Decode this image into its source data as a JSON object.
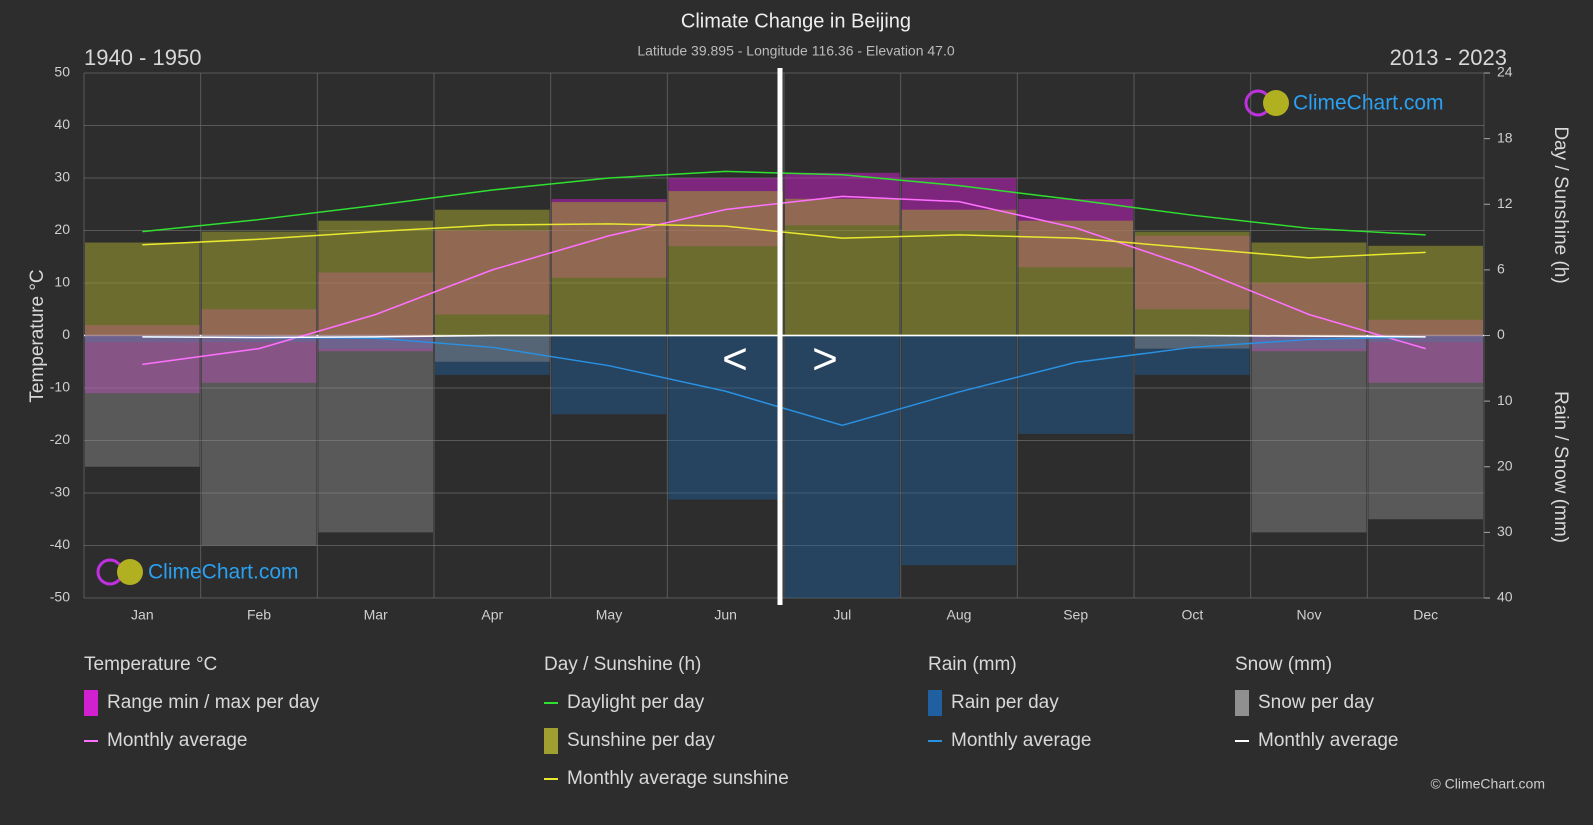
{
  "chart_data": {
    "type": "climate",
    "title": "Climate Change in Beijing",
    "subtitle": "Latitude 39.895 - Longitude 116.36 - Elevation 47.0",
    "period_left": "1940 - 1950",
    "period_right": "2013 - 2023",
    "logo": "ClimeChart.com",
    "copyright": "© ClimeChart.com",
    "nav": [
      "<",
      ">"
    ],
    "categories": [
      "Jan",
      "Feb",
      "Mar",
      "Apr",
      "May",
      "Jun",
      "Jul",
      "Aug",
      "Sep",
      "Oct",
      "Nov",
      "Dec"
    ],
    "ylabel": "Temperature °C",
    "ylim": [
      -50,
      50
    ],
    "yticks": [
      -50,
      -40,
      -30,
      -20,
      -10,
      0,
      10,
      20,
      30,
      40,
      50
    ],
    "y2label": "Day / Sunshine (h)",
    "y2lim": [
      0,
      24
    ],
    "y2ticks": [
      0,
      6,
      12,
      18,
      24
    ],
    "y3label": "Rain / Snow (mm)",
    "y3lim": [
      0,
      40
    ],
    "y3ticks": [
      10,
      20,
      30,
      40
    ],
    "grid": true,
    "groups": [
      {
        "title": "Temperature °C",
        "series": [
          {
            "name": "Range min / max per day",
            "color": "#d020d0",
            "style": "band",
            "axis": "y",
            "values": [
              2,
              5,
              12,
              20,
              26,
              30,
              31,
              30,
              26,
              19,
              10,
              3
            ],
            "low": [
              -11,
              -9,
              -3,
              4,
              11,
              17,
              21,
              20,
              13,
              5,
              -3,
              -9
            ]
          },
          {
            "name": "Monthly average",
            "color": "#ff70ff",
            "style": "line",
            "axis": "y",
            "values": [
              -5.5,
              -2.5,
              4,
              12.5,
              19,
              24,
              26.5,
              25.5,
              20.5,
              13,
              4,
              -2.5
            ]
          }
        ]
      },
      {
        "title": "Day / Sunshine (h)",
        "series": [
          {
            "name": "Daylight per day",
            "color": "#30e030",
            "style": "line",
            "axis": "y2",
            "values": [
              9.5,
              10.6,
              11.9,
              13.3,
              14.4,
              15.0,
              14.7,
              13.7,
              12.4,
              11.0,
              9.8,
              9.2
            ]
          },
          {
            "name": "Sunshine per day",
            "color": "#a0a030",
            "style": "bar",
            "axis": "y2",
            "values": [
              8.5,
              9.5,
              10.5,
              11.5,
              12.2,
              13.2,
              12.5,
              11.5,
              10.5,
              9.5,
              8.5,
              8.2
            ]
          },
          {
            "name": "Monthly average sunshine",
            "color": "#e8e830",
            "style": "line",
            "axis": "y2",
            "values": [
              8.3,
              8.8,
              9.5,
              10.1,
              10.2,
              10.0,
              8.9,
              9.2,
              8.9,
              8.0,
              7.1,
              7.6
            ]
          }
        ]
      },
      {
        "title": "Rain (mm)",
        "series": [
          {
            "name": "Rain per day",
            "color": "#2060a0",
            "style": "bar",
            "axis": "y3",
            "values": [
              1,
              1,
              2,
              6,
              12,
              25,
              40,
              35,
              15,
              6,
              2,
              1
            ]
          },
          {
            "name": "Monthly average",
            "color": "#2a90e0",
            "style": "line",
            "axis": "y3",
            "values": [
              0.2,
              0.3,
              0.4,
              1.8,
              4.6,
              8.5,
              13.7,
              8.6,
              4.1,
              1.8,
              0.6,
              0.2
            ]
          }
        ]
      },
      {
        "title": "Snow (mm)",
        "series": [
          {
            "name": "Snow per day",
            "color": "#909090",
            "style": "bar",
            "axis": "y3",
            "values": [
              20,
              32,
              30,
              4,
              0,
              0,
              0,
              0,
              0,
              2,
              30,
              28
            ]
          },
          {
            "name": "Monthly average",
            "color": "#ffffff",
            "style": "line",
            "axis": "y3",
            "values": [
              0.2,
              0.3,
              0.2,
              0,
              0,
              0,
              0,
              0,
              0,
              0,
              0.1,
              0.2
            ]
          }
        ]
      }
    ]
  }
}
